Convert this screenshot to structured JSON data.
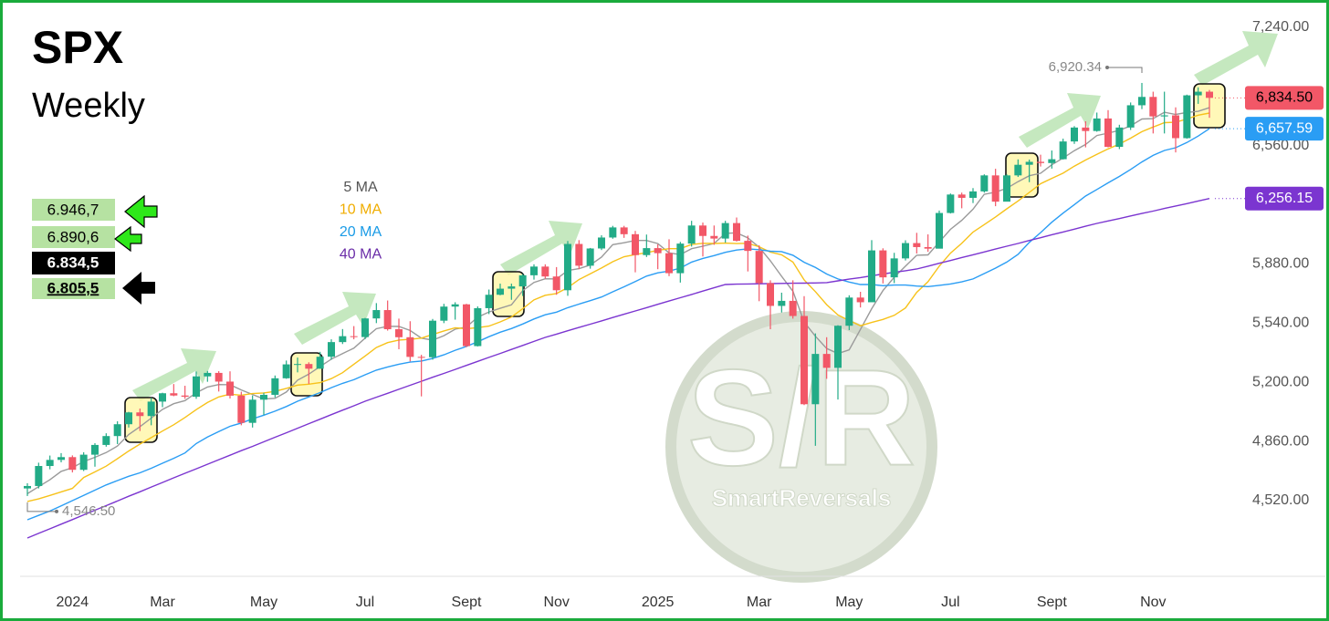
{
  "chart_data": {
    "type": "candlestick",
    "title": "SPX",
    "subtitle": "Weekly",
    "categories": [
      null,
      null,
      null,
      null,
      "2024",
      null,
      null,
      null,
      null,
      null,
      null,
      null,
      "Mar",
      null,
      null,
      null,
      null,
      null,
      null,
      null,
      null,
      "May",
      null,
      null,
      null,
      null,
      null,
      null,
      null,
      null,
      "Jul",
      null,
      null,
      null,
      null,
      null,
      null,
      null,
      null,
      "Sept",
      null,
      null,
      null,
      null,
      null,
      null,
      null,
      "Nov",
      null,
      null,
      null,
      null,
      null,
      null,
      null,
      null,
      "2025",
      null,
      null,
      null,
      null,
      null,
      null,
      null,
      null,
      "Mar",
      null,
      null,
      null,
      null,
      null,
      null,
      null,
      "May",
      null,
      null,
      null,
      null,
      null,
      null,
      null,
      null,
      "Jul",
      null,
      null,
      null,
      null,
      null,
      null,
      null,
      null,
      "Sept",
      null,
      null,
      null,
      null,
      null,
      null,
      null,
      null,
      "Nov",
      null,
      null,
      null,
      null,
      null
    ],
    "candles": {
      "up_color": "#22ab87",
      "down_color": "#f25767",
      "last_label": "6,834.50",
      "open": [
        4590,
        4604,
        4719,
        4754,
        4770,
        4697,
        4784,
        4840,
        4891,
        4959,
        5027,
        5006,
        5089,
        5137,
        5124,
        5117,
        5234,
        5254,
        5204,
        5123,
        4967,
        5100,
        5128,
        5223,
        5303,
        5305,
        5278,
        5347,
        5431,
        5465,
        5460,
        5567,
        5615,
        5505,
        5459,
        5346,
        5344,
        5554,
        5635,
        5648,
        5408,
        5626,
        5703,
        5738,
        5751,
        5815,
        5865,
        5808,
        5729,
        5995,
        5870,
        5969,
        6032,
        6090,
        6051,
        5931,
        5971,
        5942,
        5827,
        5997,
        6101,
        6041,
        6026,
        6115,
        6013,
        5955,
        5770,
        5639,
        5668,
        5581,
        5074,
        5363,
        5283,
        5525,
        5687,
        5660,
        5958,
        5803,
        5912,
        6000,
        5977,
        5968,
        6173,
        6279,
        6260,
        6297,
        6389,
        6238,
        6389,
        6450,
        6467,
        6460,
        6482,
        6584,
        6664,
        6644,
        6716,
        6553,
        6664,
        6792,
        6840,
        6728,
        6734,
        6603,
        6849,
        6870
      ],
      "high": [
        4620,
        4738,
        4779,
        4793,
        4780,
        4798,
        4850,
        4907,
        4976,
        5030,
        5049,
        5111,
        5140,
        5190,
        5180,
        5262,
        5265,
        5264,
        5263,
        5146,
        5124,
        5140,
        5239,
        5325,
        5342,
        5315,
        5375,
        5447,
        5506,
        5523,
        5570,
        5655,
        5670,
        5566,
        5551,
        5358,
        5564,
        5651,
        5660,
        5651,
        5636,
        5733,
        5767,
        5767,
        5822,
        5878,
        5878,
        5862,
        6012,
        6017,
        5972,
        6045,
        6099,
        6099,
        6070,
        6049,
        5993,
        6022,
        6007,
        6128,
        6118,
        6101,
        6128,
        6147,
        6043,
        5987,
        5786,
        5715,
        5786,
        5695,
        5481,
        5459,
        5528,
        5700,
        5720,
        6017,
        5970,
        5944,
        6016,
        6059,
        6050,
        6187,
        6285,
        6290,
        6316,
        6395,
        6427,
        6395,
        6481,
        6480,
        6508,
        6532,
        6600,
        6672,
        6700,
        6750,
        6764,
        6680,
        6808,
        6920.34,
        6870,
        6870,
        6780,
        6853,
        6895,
        6880
      ],
      "low": [
        4546.5,
        4590,
        4700,
        4740,
        4682,
        4690,
        4715,
        4830,
        4845,
        4940,
        4920,
        4953,
        5057,
        5120,
        5105,
        5105,
        5203,
        5147,
        5107,
        4953,
        4940,
        5012,
        5113,
        5220,
        5257,
        5191,
        5278,
        5330,
        5420,
        5447,
        5448,
        5540,
        5497,
        5390,
        5320,
        5119,
        5330,
        5540,
        5560,
        5402,
        5406,
        5592,
        5700,
        5674,
        5696,
        5790,
        5796,
        5703,
        5697,
        5850,
        5853,
        5960,
        6025,
        6030,
        5832,
        5920,
        5850,
        5810,
        5773,
        5980,
        5923,
        5990,
        6003,
        6009,
        5837,
        5666,
        5505,
        5601,
        5566,
        5069,
        4835,
        5220,
        5101,
        5500,
        5630,
        5760,
        5768,
        5770,
        5900,
        5940,
        5950,
        5970,
        6170,
        6200,
        6230,
        6290,
        6212,
        6240,
        6380,
        6350,
        6440,
        6428,
        6480,
        6570,
        6550,
        6640,
        6550,
        6540,
        6650,
        6770,
        6630,
        6630,
        6521,
        6600,
        6800,
        6720
      ],
      "close": [
        4604,
        4719,
        4754,
        4770,
        4697,
        4784,
        4840,
        4891,
        4959,
        5027,
        5006,
        5089,
        5137,
        5124,
        5117,
        5234,
        5254,
        5204,
        5123,
        4967,
        5100,
        5128,
        5223,
        5303,
        5305,
        5278,
        5347,
        5431,
        5465,
        5460,
        5567,
        5615,
        5505,
        5459,
        5346,
        5344,
        5554,
        5635,
        5648,
        5408,
        5626,
        5703,
        5738,
        5751,
        5815,
        5865,
        5808,
        5729,
        5995,
        5870,
        5969,
        6032,
        6090,
        6051,
        5931,
        5971,
        5942,
        5827,
        5997,
        6101,
        6041,
        6026,
        6115,
        6013,
        5955,
        5770,
        5639,
        5668,
        5581,
        5074,
        5363,
        5283,
        5525,
        5687,
        5660,
        5958,
        5803,
        5912,
        6000,
        5977,
        5968,
        6173,
        6279,
        6260,
        6297,
        6389,
        6238,
        6389,
        6450,
        6467,
        6460,
        6482,
        6584,
        6664,
        6644,
        6716,
        6553,
        6664,
        6792,
        6840,
        6728,
        6734,
        6603,
        6849,
        6870,
        6834.5
      ]
    },
    "series": [
      {
        "name": "5 MA",
        "color": "#9a9a9a",
        "legend_color": "#555555",
        "values": [
          4560,
          4600,
          4640,
          4688,
          4709,
          4745,
          4769,
          4796,
          4834,
          4900,
          4945,
          4994,
          5044,
          5077,
          5095,
          5140,
          5173,
          5187,
          5186,
          5156,
          5130,
          5104,
          5108,
          5144,
          5212,
          5247,
          5291,
          5333,
          5365,
          5396,
          5454,
          5508,
          5522,
          5521,
          5498,
          5454,
          5442,
          5468,
          5505,
          5518,
          5574,
          5604,
          5625,
          5645,
          5727,
          5774,
          5795,
          5794,
          5842,
          5853,
          5874,
          5919,
          5991,
          6002,
          6015,
          6015,
          5997,
          5944,
          5934,
          5968,
          5982,
          5998,
          6056,
          6059,
          6030,
          5976,
          5898,
          5809,
          5723,
          5546,
          5465,
          5394,
          5365,
          5386,
          5504,
          5623,
          5727,
          5804,
          5867,
          5930,
          5932,
          6006,
          6079,
          6131,
          6195,
          6280,
          6293,
          6315,
          6353,
          6387,
          6401,
          6450,
          6489,
          6531,
          6567,
          6618,
          6632,
          6648,
          6674,
          6713,
          6715,
          6752,
          6739,
          6751,
          6757,
          6778
        ]
      },
      {
        "name": "10 MA",
        "color": "#f7c21a",
        "legend_color": "#f0ad00",
        "values": [
          4515,
          4530,
          4550,
          4570,
          4590,
          4653,
          4685,
          4718,
          4761,
          4805,
          4845,
          4882,
          4920,
          4956,
          4998,
          5043,
          5084,
          5116,
          5132,
          5126,
          5135,
          5139,
          5148,
          5165,
          5184,
          5189,
          5198,
          5221,
          5255,
          5304,
          5351,
          5400,
          5428,
          5443,
          5447,
          5454,
          5475,
          5495,
          5513,
          5508,
          5514,
          5523,
          5547,
          5575,
          5623,
          5674,
          5700,
          5710,
          5744,
          5790,
          5824,
          5857,
          5893,
          5922,
          5934,
          5945,
          5958,
          5968,
          5968,
          5992,
          5999,
          5998,
          6000,
          5997,
          5999,
          5979,
          5948,
          5933,
          5891,
          5788,
          5721,
          5646,
          5587,
          5555,
          5525,
          5544,
          5561,
          5585,
          5627,
          5717,
          5778,
          5867,
          5942,
          5999,
          6063,
          6106,
          6150,
          6197,
          6242,
          6291,
          6341,
          6372,
          6402,
          6442,
          6477,
          6510,
          6541,
          6569,
          6603,
          6640,
          6667,
          6692,
          6694,
          6713,
          6735,
          6747
        ]
      },
      {
        "name": "20 MA",
        "color": "#2a9df4",
        "legend_color": "#1a9be6",
        "last_label": "6,657.59",
        "values": [
          4410,
          4435,
          4460,
          4490,
          4520,
          4550,
          4580,
          4610,
          4635,
          4660,
          4680,
          4706,
          4735,
          4763,
          4794,
          4848,
          4885,
          4917,
          4947,
          4966,
          4990,
          5011,
          5034,
          5061,
          5091,
          5116,
          5141,
          5169,
          5194,
          5215,
          5243,
          5270,
          5288,
          5304,
          5316,
          5322,
          5337,
          5358,
          5384,
          5406,
          5433,
          5462,
          5488,
          5509,
          5535,
          5564,
          5588,
          5603,
          5629,
          5649,
          5669,
          5690,
          5720,
          5749,
          5779,
          5810,
          5829,
          5839,
          5856,
          5891,
          5912,
          5928,
          5947,
          5960,
          5967,
          5962,
          5953,
          5951,
          5930,
          5890,
          5860,
          5822,
          5794,
          5776,
          5762,
          5762,
          5755,
          5759,
          5759,
          5753,
          5750,
          5757,
          5765,
          5777,
          5794,
          5825,
          5856,
          5891,
          5935,
          6004,
          6060,
          6120,
          6172,
          6221,
          6270,
          6308,
          6346,
          6383,
          6423,
          6466,
          6504,
          6532,
          6548,
          6578,
          6615,
          6657.59
        ]
      },
      {
        "name": "40 MA",
        "color": "#7b35d0",
        "legend_color": "#6a2ca8",
        "last_label": "6,256.15",
        "values": [
          4305,
          4332,
          4358,
          4385,
          4411,
          4438,
          4465,
          4491,
          4518,
          4545,
          4571,
          4598,
          4624,
          4651,
          4677,
          4703,
          4729,
          4755,
          4781,
          4807,
          4832,
          4858,
          4884,
          4910,
          4936,
          4962,
          4988,
          5014,
          5040,
          5065,
          5091,
          5114,
          5137,
          5160,
          5183,
          5206,
          5229,
          5251,
          5274,
          5297,
          5320,
          5343,
          5366,
          5389,
          5412,
          5435,
          5458,
          5477,
          5496,
          5515,
          5534,
          5553,
          5572,
          5591,
          5610,
          5629,
          5648,
          5667,
          5686,
          5705,
          5724,
          5743,
          5762,
          5764,
          5765,
          5766,
          5767,
          5768,
          5769,
          5770,
          5771,
          5773,
          5783,
          5793,
          5802,
          5812,
          5822,
          5832,
          5841,
          5851,
          5867,
          5884,
          5900,
          5917,
          5933,
          5949,
          5966,
          5982,
          5998,
          6015,
          6031,
          6048,
          6064,
          6080,
          6097,
          6113,
          6127,
          6141,
          6156,
          6170,
          6184,
          6199,
          6213,
          6227,
          6242,
          6256.15
        ]
      }
    ],
    "ylim": [
      4085,
      7355
    ],
    "yticks": [
      {
        "value": 4520,
        "label": "4,520.00"
      },
      {
        "value": 4860,
        "label": "4,860.00"
      },
      {
        "value": 5200,
        "label": "5,200.00"
      },
      {
        "value": 5540,
        "label": "5,540.00"
      },
      {
        "value": 5880,
        "label": "5,880.00"
      },
      {
        "value": 6560,
        "label": "6,560.00"
      },
      {
        "value": 7240,
        "label": "7,240.00"
      }
    ],
    "grid": false,
    "annotations": [
      {
        "value": 6920.34,
        "label": "6,920.34"
      },
      {
        "value": 4546.5,
        "label": "4,546.50"
      }
    ],
    "levels": [
      "6.946,7",
      "6.890,6",
      "6.834,5",
      "6.805,5"
    ],
    "watermark": {
      "logo": "S/R",
      "name": "SmartReversals"
    }
  }
}
